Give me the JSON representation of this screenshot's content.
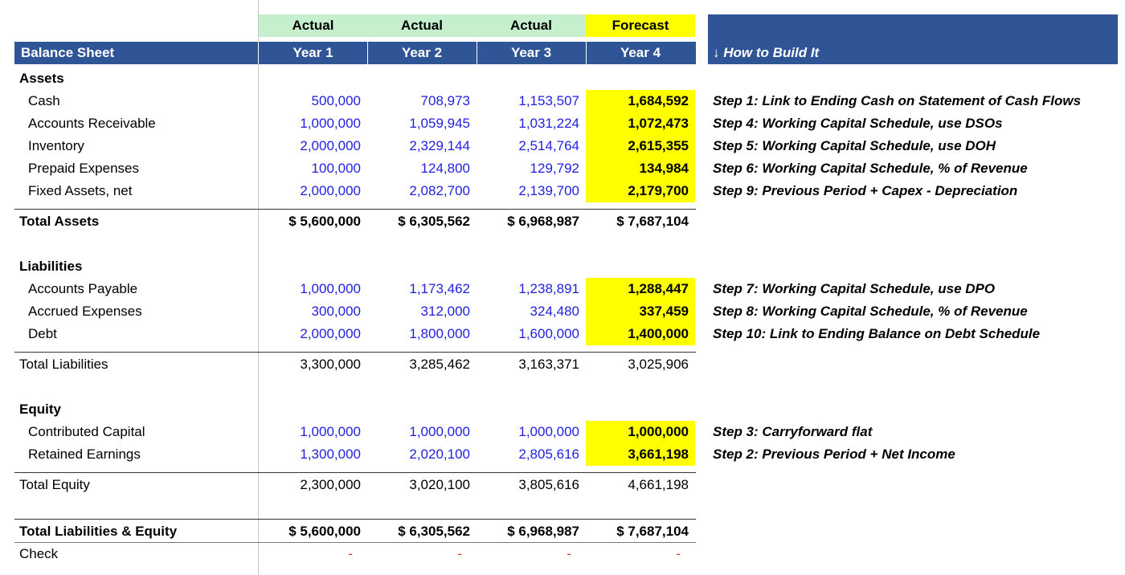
{
  "header": {
    "row1": [
      "Actual",
      "Actual",
      "Actual",
      "Forecast"
    ],
    "title": "Balance Sheet",
    "years": [
      "Year 1",
      "Year 2",
      "Year 3",
      "Year 4"
    ],
    "how_to": "↓ How to Build It"
  },
  "assets": {
    "section": "Assets",
    "items": [
      {
        "label": "Cash",
        "values": [
          "500,000",
          "708,973",
          "1,153,507",
          "1,684,592"
        ],
        "note": "Step 1: Link to Ending Cash on Statement of Cash Flows"
      },
      {
        "label": "Accounts Receivable",
        "values": [
          "1,000,000",
          "1,059,945",
          "1,031,224",
          "1,072,473"
        ],
        "note": "Step 4: Working Capital Schedule, use DSOs"
      },
      {
        "label": "Inventory",
        "values": [
          "2,000,000",
          "2,329,144",
          "2,514,764",
          "2,615,355"
        ],
        "note": "Step 5: Working Capital Schedule, use DOH"
      },
      {
        "label": "Prepaid Expenses",
        "values": [
          "100,000",
          "124,800",
          "129,792",
          "134,984"
        ],
        "note": "Step 6: Working Capital Schedule, % of Revenue"
      },
      {
        "label": "Fixed Assets, net",
        "values": [
          "2,000,000",
          "2,082,700",
          "2,139,700",
          "2,179,700"
        ],
        "note": "Step 9: Previous Period + Capex - Depreciation"
      }
    ],
    "total": {
      "label": "Total Assets",
      "values": [
        "$ 5,600,000",
        "$ 6,305,562",
        "$ 6,968,987",
        "$ 7,687,104"
      ]
    }
  },
  "liabilities": {
    "section": "Liabilities",
    "items": [
      {
        "label": "Accounts Payable",
        "values": [
          "1,000,000",
          "1,173,462",
          "1,238,891",
          "1,288,447"
        ],
        "note": "Step 7: Working Capital Schedule, use DPO"
      },
      {
        "label": "Accrued Expenses",
        "values": [
          "300,000",
          "312,000",
          "324,480",
          "337,459"
        ],
        "note": "Step 8: Working Capital Schedule, % of Revenue"
      },
      {
        "label": "Debt",
        "values": [
          "2,000,000",
          "1,800,000",
          "1,600,000",
          "1,400,000"
        ],
        "note": "Step 10: Link to Ending Balance on Debt Schedule"
      }
    ],
    "total": {
      "label": "Total Liabilities",
      "values": [
        "3,300,000",
        "3,285,462",
        "3,163,371",
        "3,025,906"
      ]
    }
  },
  "equity": {
    "section": "Equity",
    "items": [
      {
        "label": "Contributed Capital",
        "values": [
          "1,000,000",
          "1,000,000",
          "1,000,000",
          "1,000,000"
        ],
        "note": "Step 3: Carryforward flat"
      },
      {
        "label": "Retained Earnings",
        "values": [
          "1,300,000",
          "2,020,100",
          "2,805,616",
          "3,661,198"
        ],
        "note": "Step 2: Previous Period + Net Income"
      }
    ],
    "total": {
      "label": "Total Equity",
      "values": [
        "2,300,000",
        "3,020,100",
        "3,805,616",
        "4,661,198"
      ]
    }
  },
  "grand_total": {
    "label": "Total Liabilities & Equity",
    "values": [
      "$ 5,600,000",
      "$ 6,305,562",
      "$ 6,968,987",
      "$ 7,687,104"
    ]
  },
  "check": {
    "label": "Check",
    "values": [
      "-",
      "-",
      "-",
      "-"
    ]
  },
  "colors": {
    "navy": "#2f5597",
    "actual_green": "#c6efce",
    "forecast_yellow": "#ffff00",
    "input_blue": "#1f1fe0",
    "check_red": "#e03030"
  }
}
